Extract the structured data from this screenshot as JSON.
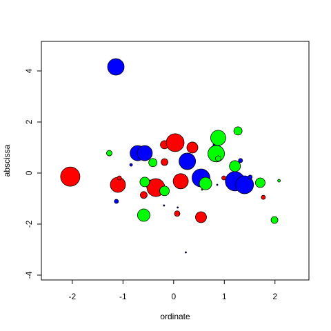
{
  "chart_data": {
    "type": "bubble",
    "x_label": "ordinate",
    "y_label": "abscissa",
    "xlim": [
      -2.61,
      2.67
    ],
    "ylim": [
      -4.19,
      5.16
    ],
    "xticks": [
      -2,
      -1,
      0,
      1,
      2
    ],
    "yticks": [
      -4,
      -2,
      0,
      2,
      4
    ],
    "series": [
      {
        "color": "#0000ff",
        "x": [
          -1.14,
          -0.84,
          -1.13,
          -0.71,
          -0.57,
          -0.45,
          0.27,
          0.54,
          0.83,
          1.21,
          1.4,
          1.32,
          1.51,
          -0.19,
          0.08,
          0.24,
          0.86
        ],
        "y": [
          4.16,
          0.32,
          -1.11,
          0.78,
          0.78,
          -0.46,
          0.46,
          -0.19,
          1.08,
          -0.32,
          -0.46,
          0.49,
          -0.16,
          -1.27,
          -1.35,
          -3.11,
          -0.46
        ],
        "size": [
          12,
          2,
          3,
          11,
          11,
          7,
          12,
          13,
          4,
          14,
          13,
          3,
          3,
          1,
          1,
          1,
          1
        ]
      },
      {
        "color": "#ff0000",
        "x": [
          -2.04,
          -1.1,
          -1.07,
          -0.59,
          -0.35,
          -0.18,
          -0.18,
          0.03,
          0.14,
          0.37,
          0.07,
          0.54,
          0.99,
          1.77
        ],
        "y": [
          -0.14,
          -0.46,
          -0.19,
          -0.86,
          -0.57,
          0.43,
          1.11,
          1.19,
          -0.32,
          1.0,
          -1.59,
          -1.73,
          -0.19,
          -0.95
        ],
        "size": [
          14,
          11,
          3,
          5,
          13,
          5,
          6,
          13,
          11,
          8,
          4,
          8,
          3,
          3
        ]
      },
      {
        "color": "#00ff00",
        "x": [
          -1.27,
          -0.57,
          -0.41,
          -0.18,
          -0.59,
          0.63,
          0.88,
          0.84,
          0.88,
          1.27,
          1.21,
          1.71,
          1.99,
          2.08,
          0.56
        ],
        "y": [
          0.78,
          -0.35,
          0.41,
          -0.7,
          -1.65,
          -0.41,
          1.38,
          0.76,
          0.57,
          1.65,
          0.27,
          -0.38,
          -1.84,
          -0.3,
          -0.65
        ],
        "size": [
          4,
          7,
          6,
          7,
          9,
          9,
          11,
          12,
          4,
          6,
          8,
          7,
          5,
          2,
          1
        ]
      }
    ]
  }
}
